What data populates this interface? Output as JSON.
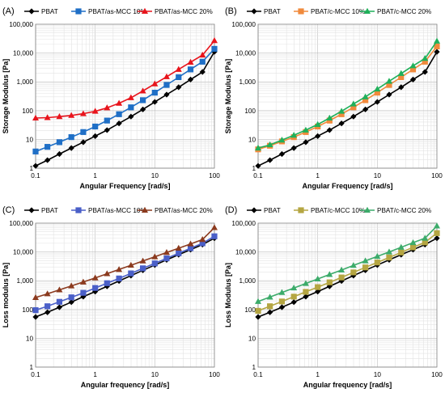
{
  "figure": {
    "panels": [
      "A",
      "B",
      "C",
      "D"
    ]
  },
  "chart_data": [
    {
      "panel_label": "(A)",
      "type": "line",
      "xscale": "log",
      "yscale": "log",
      "xlim": [
        0.1,
        100
      ],
      "ylim": [
        1,
        100000
      ],
      "xticks": [
        "0.1",
        "1",
        "10",
        "100"
      ],
      "yticks": [
        "1",
        "10",
        "100",
        "1,000",
        "10,000",
        "100,000"
      ],
      "xlabel": "Angular Frequency [rad/s]",
      "ylabel": "Storage Modulus [Pa]",
      "grid": true,
      "legend_position": "top",
      "x": [
        0.1,
        0.158,
        0.251,
        0.398,
        0.631,
        1,
        1.58,
        2.51,
        3.98,
        6.31,
        10,
        15.8,
        25.1,
        39.8,
        63.1,
        100
      ],
      "series": [
        {
          "name": "PBAT",
          "color": "#000000",
          "marker": "diamond",
          "values": [
            1.2,
            1.9,
            3.1,
            5,
            8,
            13,
            21,
            36,
            62,
            110,
            200,
            360,
            650,
            1200,
            2200,
            11000
          ]
        },
        {
          "name": "PBAT/as-MCC 10%",
          "color": "#1f6fc6",
          "marker": "square",
          "values": [
            3.8,
            5.5,
            8,
            12,
            18,
            28,
            45,
            75,
            130,
            230,
            420,
            780,
            1450,
            2700,
            5000,
            14000
          ]
        },
        {
          "name": "PBAT/as-MCC 20%",
          "color": "#e8141c",
          "marker": "triangle",
          "values": [
            55,
            57,
            62,
            68,
            78,
            95,
            125,
            180,
            280,
            480,
            850,
            1500,
            2700,
            4800,
            8500,
            27000
          ]
        }
      ]
    },
    {
      "panel_label": "(B)",
      "type": "line",
      "xscale": "log",
      "yscale": "log",
      "xlim": [
        0.1,
        100
      ],
      "ylim": [
        1,
        100000
      ],
      "xticks": [
        "0.1",
        "1",
        "10",
        "100"
      ],
      "yticks": [
        "1",
        "10",
        "100",
        "1,000",
        "10,000",
        "100,000"
      ],
      "xlabel": "Angular Frequency [rad/s]",
      "ylabel": "Storage Modulus [Pa]",
      "grid": true,
      "legend_position": "top",
      "x": [
        0.1,
        0.158,
        0.251,
        0.398,
        0.631,
        1,
        1.58,
        2.51,
        3.98,
        6.31,
        10,
        15.8,
        25.1,
        39.8,
        63.1,
        100
      ],
      "series": [
        {
          "name": "PBAT",
          "color": "#000000",
          "marker": "diamond",
          "values": [
            1.2,
            1.9,
            3.1,
            5,
            8,
            13,
            21,
            36,
            62,
            110,
            200,
            360,
            650,
            1200,
            2200,
            11000
          ]
        },
        {
          "name": "PBAT/c-MCC 10%",
          "color": "#f08a3c",
          "marker": "square",
          "values": [
            4.5,
            6,
            8.5,
            12,
            18,
            28,
            45,
            75,
            130,
            230,
            420,
            780,
            1450,
            2700,
            5000,
            17000
          ]
        },
        {
          "name": "PBAT/c-MCC 20%",
          "color": "#1fb05a",
          "marker": "triangle",
          "values": [
            5,
            6.5,
            9.5,
            14,
            21,
            33,
            55,
            95,
            170,
            300,
            560,
            1050,
            1950,
            3600,
            6500,
            26000
          ]
        }
      ]
    },
    {
      "panel_label": "(C)",
      "type": "line",
      "xscale": "log",
      "yscale": "log",
      "xlim": [
        0.1,
        100
      ],
      "ylim": [
        1,
        100000
      ],
      "xticks": [
        "0.1",
        "1",
        "10",
        "100"
      ],
      "yticks": [
        "1",
        "10",
        "100",
        "1,000",
        "10,000",
        "100,000"
      ],
      "xlabel": "Angular frequency [rad/s]",
      "ylabel": "Loss modulus [Pa]",
      "grid": true,
      "legend_position": "top",
      "x": [
        0.1,
        0.158,
        0.251,
        0.398,
        0.631,
        1,
        1.58,
        2.51,
        3.98,
        6.31,
        10,
        15.8,
        25.1,
        39.8,
        63.1,
        100
      ],
      "series": [
        {
          "name": "PBAT",
          "color": "#000000",
          "marker": "diamond",
          "values": [
            55,
            80,
            120,
            180,
            280,
            420,
            640,
            980,
            1500,
            2300,
            3500,
            5300,
            8000,
            12000,
            18000,
            30000
          ]
        },
        {
          "name": "PBAT/as-MCC 10%",
          "color": "#4a5fc8",
          "marker": "square",
          "values": [
            95,
            130,
            185,
            265,
            380,
            560,
            820,
            1200,
            1800,
            2700,
            4000,
            6000,
            9000,
            13500,
            20000,
            35000
          ]
        },
        {
          "name": "PBAT/as-MCC 20%",
          "color": "#8b3a1e",
          "marker": "triangle",
          "values": [
            260,
            350,
            480,
            660,
            900,
            1250,
            1750,
            2450,
            3450,
            4850,
            6800,
            9600,
            13500,
            19000,
            27000,
            70000
          ]
        }
      ]
    },
    {
      "panel_label": "(D)",
      "type": "line",
      "xscale": "log",
      "yscale": "log",
      "xlim": [
        0.1,
        100
      ],
      "ylim": [
        1,
        100000
      ],
      "xticks": [
        "0.1",
        "1",
        "10",
        "100"
      ],
      "yticks": [
        "1",
        "10",
        "100",
        "1,000",
        "10,000",
        "100,000"
      ],
      "xlabel": "Angular frequency [rad/s]",
      "ylabel": "Loss Modulus [Pa]",
      "grid": true,
      "legend_position": "top",
      "x": [
        0.1,
        0.158,
        0.251,
        0.398,
        0.631,
        1,
        1.58,
        2.51,
        3.98,
        6.31,
        10,
        15.8,
        25.1,
        39.8,
        63.1,
        100
      ],
      "series": [
        {
          "name": "PBAT",
          "color": "#000000",
          "marker": "diamond",
          "values": [
            55,
            80,
            120,
            180,
            280,
            420,
            640,
            980,
            1500,
            2300,
            3500,
            5300,
            8000,
            12000,
            18000,
            30000
          ]
        },
        {
          "name": "PBAT/c-MCC 10%",
          "color": "#b5a642",
          "marker": "square",
          "values": [
            90,
            130,
            190,
            280,
            410,
            600,
            880,
            1300,
            1950,
            2900,
            4300,
            6400,
            9600,
            14500,
            21500,
            45000
          ]
        },
        {
          "name": "PBAT/c-MCC 20%",
          "color": "#3cab6a",
          "marker": "triangle",
          "values": [
            190,
            270,
            390,
            560,
            800,
            1150,
            1650,
            2350,
            3400,
            4900,
            7000,
            10000,
            14500,
            21000,
            30000,
            80000
          ]
        }
      ]
    }
  ]
}
